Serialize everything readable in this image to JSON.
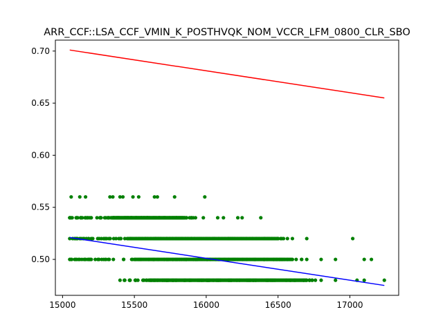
{
  "chart_data": {
    "type": "scatter",
    "title": "ARR_CCF::LSA_CCF_VMIN_K_POSTHVQK_NOM_VCCR_LFM_0800_CLR_SBO",
    "xlabel": "",
    "ylabel": "",
    "xlim": [
      14950,
      17340
    ],
    "ylim": [
      0.4655,
      0.7105
    ],
    "xticks": [
      15000,
      15500,
      16000,
      16500,
      17000
    ],
    "yticks": [
      0.5,
      0.55,
      0.6,
      0.65,
      0.7
    ],
    "xtick_labels": [
      "15000",
      "15500",
      "16000",
      "16500",
      "17000"
    ],
    "ytick_labels": [
      "0.50",
      "0.55",
      "0.60",
      "0.65",
      "0.70"
    ],
    "grid": false,
    "colors": {
      "points": "#008000",
      "upper_line": "#ff0000",
      "fit_line": "#0000ff"
    },
    "series": [
      {
        "type": "scatter",
        "bands": [
          {
            "y": 0.48,
            "x_range": [
              15400,
              17240
            ],
            "dense_range": [
              15600,
              16700
            ],
            "sparse": [
              15400,
              15430,
              15470,
              16800,
              16900,
              17050,
              17100,
              17240
            ]
          },
          {
            "y": 0.5,
            "x_range": [
              15050,
              17150
            ],
            "dense_range": [
              15500,
              16600
            ],
            "sparse": [
              15050,
              15120,
              15150,
              15200,
              15250,
              15300,
              16700,
              16800,
              16900,
              17100,
              17150
            ]
          },
          {
            "y": 0.52,
            "x_range": [
              15050,
              17020
            ],
            "dense_range": [
              15450,
              16500
            ],
            "sparse": [
              15050,
              15070,
              15100,
              15120,
              15150,
              15200,
              15270,
              15330,
              16600,
              16700,
              17020
            ]
          },
          {
            "y": 0.54,
            "x_range": [
              15050,
              16380
            ],
            "dense_range": [
              15350,
              15850
            ],
            "sparse": [
              15050,
              15100,
              15200,
              15260,
              15300,
              15900,
              15980,
              16080,
              16120,
              16220,
              16250,
              16380
            ]
          },
          {
            "y": 0.56,
            "x_range": [
              15060,
              15990
            ],
            "points": [
              15060,
              15120,
              15160,
              15330,
              15350,
              15400,
              15420,
              15490,
              15530,
              15640,
              15660,
              15780,
              15990
            ]
          }
        ]
      },
      {
        "type": "line",
        "x": [
          15050,
          17240
        ],
        "y": [
          0.701,
          0.655
        ]
      },
      {
        "type": "line",
        "x": [
          15050,
          17240
        ],
        "y": [
          0.521,
          0.475
        ]
      }
    ]
  }
}
